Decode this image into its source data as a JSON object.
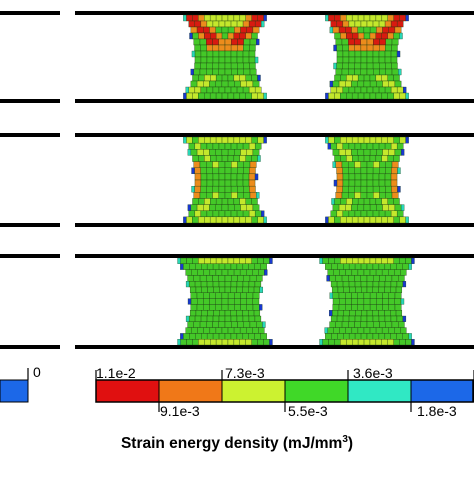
{
  "figure": {
    "rows": [
      {
        "name": "row-1",
        "specimens": [
          "left-specimen",
          "right-specimen"
        ]
      },
      {
        "name": "row-2",
        "specimens": [
          "left-specimen",
          "right-specimen"
        ]
      },
      {
        "name": "row-3",
        "specimens": [
          "left-specimen",
          "right-specimen"
        ]
      }
    ],
    "partial_colorbar_label": "0",
    "colorbar": {
      "upper_labels": [
        "1.1e-2",
        "7.3e-3",
        "3.6e-3"
      ],
      "lower_labels": [
        "9.1e-3",
        "5.5e-3",
        "1.8e-3"
      ],
      "colors": [
        "#e01010",
        "#f07818",
        "#ccf230",
        "#40d828",
        "#30e8c4",
        "#1c68e8"
      ]
    },
    "title_text": "Strain energy density (mJ/mm",
    "title_exponent": "3",
    "title_close": ")",
    "contour_colors": {
      "red": "#d81a10",
      "orange": "#ec8c1c",
      "yellow": "#c4e82c",
      "green": "#44c828",
      "cyan": "#28d8b8",
      "blue": "#1838d0"
    }
  }
}
